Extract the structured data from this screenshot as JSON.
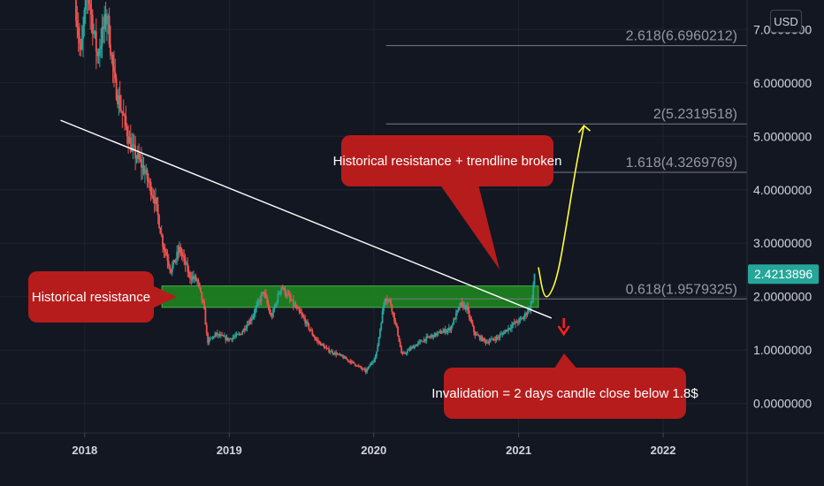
{
  "currency_label": "USD",
  "last_price_label": "2.4213896",
  "colors": {
    "background": "#131722",
    "bull": "#26a69a",
    "bear": "#ef5350",
    "zone_fill": "#1e8b1e",
    "zone_border": "#4caf50",
    "callout": "#b71c1c",
    "trendline": "#ffffff",
    "projection": "#ffff33",
    "invalidation_arrow": "#ff2020",
    "price_tag": "#26a69a"
  },
  "chart_data": {
    "type": "candlestick",
    "x_ticks": [
      "2018",
      "2019",
      "2020",
      "2021",
      "2022"
    ],
    "y_ticks": [
      {
        "value": 0,
        "label": "0.0000000"
      },
      {
        "value": 1,
        "label": "1.0000000"
      },
      {
        "value": 2,
        "label": "2.0000000"
      },
      {
        "value": 3,
        "label": "3.0000000"
      },
      {
        "value": 4,
        "label": "4.0000000"
      },
      {
        "value": 5,
        "label": "5.0000000"
      },
      {
        "value": 6,
        "label": "6.0000000"
      },
      {
        "value": 7,
        "label": "7.0000000"
      }
    ],
    "ylim": [
      -0.55,
      7.55
    ],
    "xlim": [
      "2017-06-01",
      "2022-08-01"
    ],
    "grid": true,
    "last_price": 2.4213896,
    "price_path": [
      [
        "2017-12-10",
        7.6
      ],
      [
        "2017-12-25",
        6.5
      ],
      [
        "2018-01-10",
        7.8
      ],
      [
        "2018-02-05",
        6.5
      ],
      [
        "2018-03-01",
        7.3
      ],
      [
        "2018-03-20",
        6.0
      ],
      [
        "2018-04-10",
        5.4
      ],
      [
        "2018-05-01",
        4.8
      ],
      [
        "2018-06-01",
        4.4
      ],
      [
        "2018-07-01",
        3.8
      ],
      [
        "2018-07-20",
        3.0
      ],
      [
        "2018-08-10",
        2.5
      ],
      [
        "2018-09-01",
        2.9
      ],
      [
        "2018-09-25",
        2.4
      ],
      [
        "2018-10-15",
        2.3
      ],
      [
        "2018-11-01",
        1.8
      ],
      [
        "2018-11-10",
        1.15
      ],
      [
        "2018-12-01",
        1.3
      ],
      [
        "2019-01-01",
        1.2
      ],
      [
        "2019-02-01",
        1.3
      ],
      [
        "2019-03-01",
        1.6
      ],
      [
        "2019-04-01",
        2.1
      ],
      [
        "2019-04-20",
        1.6
      ],
      [
        "2019-05-15",
        2.2
      ],
      [
        "2019-06-20",
        1.8
      ],
      [
        "2019-07-10",
        1.6
      ],
      [
        "2019-08-10",
        1.2
      ],
      [
        "2019-09-10",
        1.0
      ],
      [
        "2019-10-10",
        0.9
      ],
      [
        "2019-11-15",
        0.75
      ],
      [
        "2019-12-15",
        0.6
      ],
      [
        "2020-01-10",
        0.9
      ],
      [
        "2020-02-01",
        2.0
      ],
      [
        "2020-02-15",
        1.9
      ],
      [
        "2020-03-05",
        1.3
      ],
      [
        "2020-03-15",
        0.9
      ],
      [
        "2020-04-10",
        1.05
      ],
      [
        "2020-05-10",
        1.2
      ],
      [
        "2020-06-10",
        1.3
      ],
      [
        "2020-07-15",
        1.4
      ],
      [
        "2020-08-10",
        1.85
      ],
      [
        "2020-08-25",
        1.8
      ],
      [
        "2020-09-15",
        1.3
      ],
      [
        "2020-10-15",
        1.15
      ],
      [
        "2020-11-15",
        1.25
      ],
      [
        "2020-12-15",
        1.45
      ],
      [
        "2021-01-15",
        1.6
      ],
      [
        "2021-02-01",
        1.8
      ],
      [
        "2021-02-08",
        2.0
      ],
      [
        "2021-02-12",
        2.42
      ]
    ],
    "support_resistance_zone": {
      "low": 1.8,
      "high": 2.2,
      "x0": "2018-07-15",
      "x1": "2021-02-20"
    },
    "trendline": {
      "x0": "2017-11-01",
      "y0": 5.3,
      "x1": "2021-03-25",
      "y1": 1.6
    },
    "fib_levels": [
      {
        "ratio": 0.618,
        "label": "0.618(1.9579325)",
        "value": 1.9579325
      },
      {
        "ratio": 1.618,
        "label": "1.618(4.3269769)",
        "value": 4.3269769
      },
      {
        "ratio": 2,
        "label": "2(5.2319518)",
        "value": 5.2319518
      },
      {
        "ratio": 2.618,
        "label": "2.618(6.6960212)",
        "value": 6.6960212
      }
    ],
    "fib_x_start": "2020-02-01",
    "projection_path": [
      [
        "2021-02-20",
        2.55
      ],
      [
        "2021-03-05",
        2.0
      ],
      [
        "2021-03-20",
        2.0
      ],
      [
        "2021-04-10",
        2.4
      ],
      [
        "2021-05-01",
        3.3
      ],
      [
        "2021-05-25",
        4.4
      ],
      [
        "2021-06-15",
        5.2
      ]
    ],
    "invalidation_arrow": {
      "x": "2021-04-25",
      "y_from": 1.6,
      "y_to": 1.35
    },
    "annotations": [
      {
        "text": "Historical resistance",
        "x": "2017-06-15",
        "y": 2.0
      },
      {
        "text": "Historical resistance + trendline broken",
        "x": "2020-08-01",
        "y": 4.5
      },
      {
        "text": "Invalidation = 2 days candle close below 1.8$",
        "x": "2021-01-20",
        "y": 0.3
      }
    ]
  }
}
